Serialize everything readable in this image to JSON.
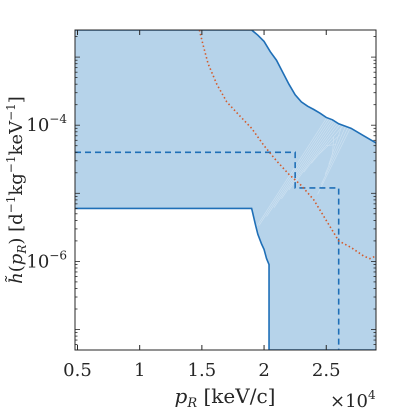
{
  "chart_data": {
    "type": "area",
    "title": "",
    "xlabel": "p_R [keV/c]",
    "ylabel": "h̃(p_R) [d^-1 kg^-1 keV^-1]",
    "x_multiplier_label": "×10^4",
    "xlim": [
      4800,
      29000
    ],
    "ylim": [
      5e-08,
      0.0025
    ],
    "y_scale": "log",
    "grid": false,
    "legend": "none",
    "x_ticks": [
      {
        "value": 5000,
        "label": "0.5"
      },
      {
        "value": 10000,
        "label": "1"
      },
      {
        "value": 15000,
        "label": "1.5"
      },
      {
        "value": 20000,
        "label": "2"
      },
      {
        "value": 25000,
        "label": "2.5"
      }
    ],
    "y_ticks": [
      {
        "value": 0.0001,
        "label": "10^-4"
      },
      {
        "value": 1e-06,
        "label": "10^-6"
      }
    ],
    "colors": {
      "band_fill": "#b6d3ea",
      "band_edge": "#1f6fb7",
      "dashed": "#1f6fb7",
      "dotted": "#d35a2b"
    },
    "band_upper": {
      "x": [
        4800,
        19000,
        19500,
        20000,
        20500,
        21000,
        21500,
        22000,
        22500,
        23000,
        23500,
        24000,
        24500,
        25000,
        25500,
        26000,
        27000,
        28000,
        29000
      ],
      "y": [
        0.0025,
        0.0025,
        0.0021,
        0.0017,
        0.0012,
        0.0009,
        0.0006,
        0.0004,
        0.00028,
        0.00022,
        0.00019,
        0.00017,
        0.00015,
        0.00013,
        0.00012,
        0.000105,
        9e-05,
        7e-05,
        5.5e-05
      ]
    },
    "band_lower": {
      "x": [
        4800,
        19000,
        19050,
        19300,
        19500,
        19800,
        20000,
        20200,
        20400,
        20400,
        29000
      ],
      "y": [
        6e-06,
        6e-06,
        5.5e-06,
        3.5e-06,
        2.5e-06,
        1.8e-06,
        1.5e-06,
        1.1e-06,
        9e-07,
        5e-08,
        5e-08
      ]
    },
    "series": [
      {
        "style": "dashed",
        "x": [
          4800,
          22500,
          22500,
          26000,
          26000
        ],
        "y": [
          4e-05,
          4e-05,
          1.2e-05,
          1.2e-05,
          5e-08
        ]
      },
      {
        "style": "dotted",
        "x": [
          14800,
          15100,
          15500,
          16200,
          17000,
          18000,
          19000,
          20000,
          21000,
          22000,
          23000,
          24000,
          25000,
          26000,
          27000,
          28000,
          28500,
          29000
        ],
        "y": [
          0.0025,
          0.0015,
          0.0008,
          0.0004,
          0.00022,
          0.00014,
          9e-05,
          5e-05,
          3e-05,
          1.9e-05,
          1.3e-05,
          8e-06,
          4e-06,
          2e-06,
          1.6e-06,
          1.2e-06,
          1.1e-06,
          1.2e-06
        ]
      }
    ]
  }
}
